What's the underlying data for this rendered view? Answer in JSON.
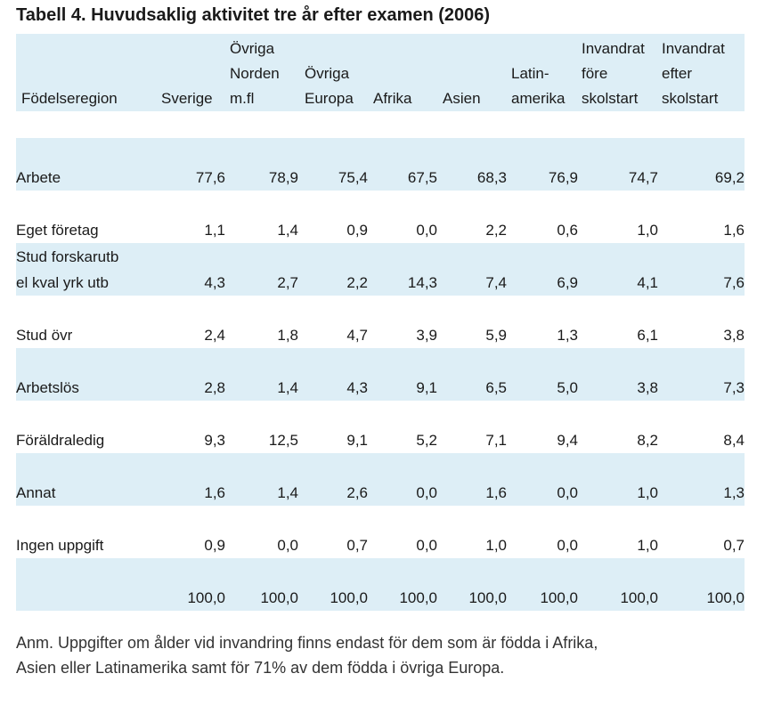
{
  "title": "Tabell 4. Huvudsaklig aktivitet tre år efter examen (2006)",
  "header": {
    "region_label": "Födelseregion",
    "columns": [
      [
        "Sverige"
      ],
      [
        "Övriga",
        "Norden",
        "m.fl"
      ],
      [
        "Övriga",
        "Europa"
      ],
      [
        "Afrika"
      ],
      [
        "Asien"
      ],
      [
        "Latin-",
        "amerika"
      ],
      [
        "Invandrat",
        "före",
        "skolstart"
      ],
      [
        "Invandrat",
        "efter",
        "skolstart"
      ]
    ]
  },
  "rows": [
    {
      "label": [
        "Arbete"
      ],
      "values": [
        "77,6",
        "78,9",
        "75,4",
        "67,5",
        "68,3",
        "76,9",
        "74,7",
        "69,2"
      ]
    },
    {
      "label": [
        "Eget företag"
      ],
      "values": [
        "1,1",
        "1,4",
        "0,9",
        "0,0",
        "2,2",
        "0,6",
        "1,0",
        "1,6"
      ]
    },
    {
      "label": [
        "Stud forskarutb",
        "el kval yrk utb"
      ],
      "values": [
        "4,3",
        "2,7",
        "2,2",
        "14,3",
        "7,4",
        "6,9",
        "4,1",
        "7,6"
      ]
    },
    {
      "label": [
        "Stud övr"
      ],
      "values": [
        "2,4",
        "1,8",
        "4,7",
        "3,9",
        "5,9",
        "1,3",
        "6,1",
        "3,8"
      ]
    },
    {
      "label": [
        "Arbetslös"
      ],
      "values": [
        "2,8",
        "1,4",
        "4,3",
        "9,1",
        "6,5",
        "5,0",
        "3,8",
        "7,3"
      ]
    },
    {
      "label": [
        "Föräldraledig"
      ],
      "values": [
        "9,3",
        "12,5",
        "9,1",
        "5,2",
        "7,1",
        "9,4",
        "8,2",
        "8,4"
      ]
    },
    {
      "label": [
        "Annat"
      ],
      "values": [
        "1,6",
        "1,4",
        "2,6",
        "0,0",
        "1,6",
        "0,0",
        "1,0",
        "1,3"
      ]
    },
    {
      "label": [
        "Ingen uppgift"
      ],
      "values": [
        "0,9",
        "0,0",
        "0,7",
        "0,0",
        "1,0",
        "0,0",
        "1,0",
        "0,7"
      ]
    },
    {
      "label": [
        ""
      ],
      "values": [
        "100,0",
        "100,0",
        "100,0",
        "100,0",
        "100,0",
        "100,0",
        "100,0",
        "100,0"
      ]
    }
  ],
  "note": [
    "Anm. Uppgifter om ålder vid invandring finns endast för dem som är födda i Afrika,",
    "Asien eller Latinamerika samt för 71% av dem födda i övriga Europa."
  ],
  "colors": {
    "band": "#ddeef6",
    "text": "#1a1a1a"
  }
}
